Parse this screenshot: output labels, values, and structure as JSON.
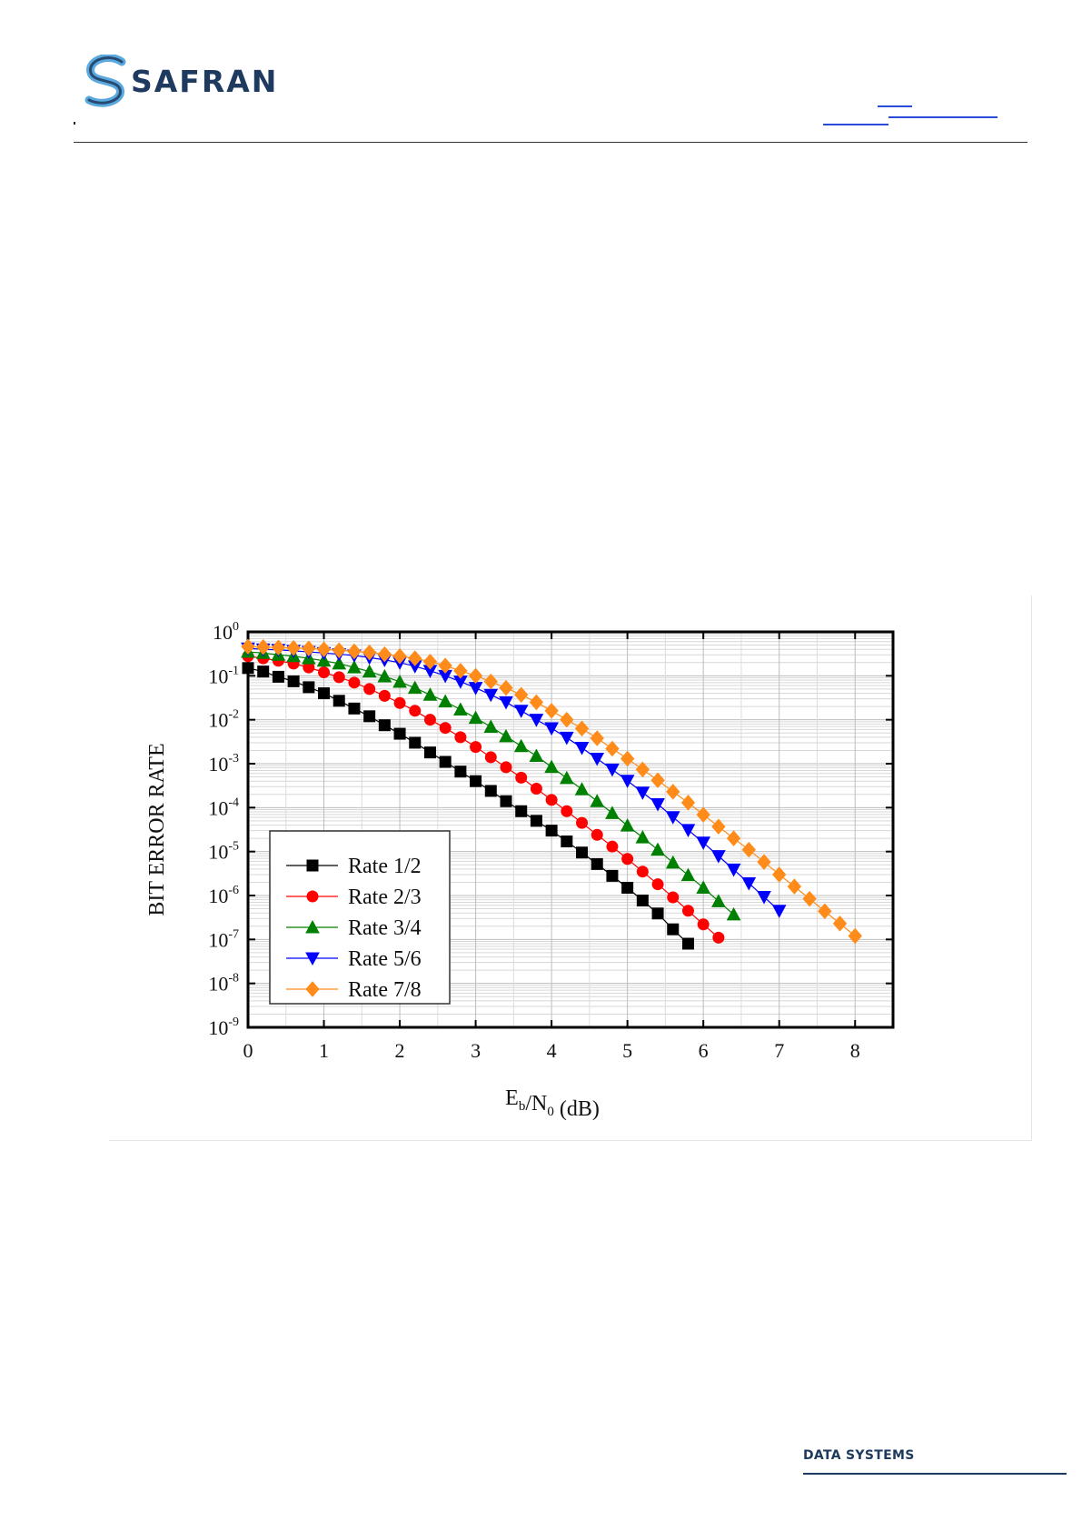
{
  "header": {
    "brand": "SAFRAN",
    "brand_color": "#1e3a5f",
    "logo_icon": "safran-s-swoosh",
    "link_color": "#2a4bd7"
  },
  "footer": {
    "label": "DATA SYSTEMS"
  },
  "chart_data": {
    "type": "line",
    "title": "",
    "xlabel": "E_b/N_0 (dB)",
    "ylabel": "BIT ERROR RATE",
    "xlim": [
      0,
      8.5
    ],
    "ylim": [
      1e-09,
      1
    ],
    "y_scale": "log",
    "x_ticks": [
      0,
      1,
      2,
      3,
      4,
      5,
      6,
      7,
      8
    ],
    "y_ticks": [
      {
        "base": "10",
        "exp": "0",
        "value": 1
      },
      {
        "base": "10",
        "exp": "-1",
        "value": 0.1
      },
      {
        "base": "10",
        "exp": "-2",
        "value": 0.01
      },
      {
        "base": "10",
        "exp": "-3",
        "value": 0.001
      },
      {
        "base": "10",
        "exp": "-4",
        "value": 0.0001
      },
      {
        "base": "10",
        "exp": "-5",
        "value": 1e-05
      },
      {
        "base": "10",
        "exp": "-6",
        "value": 1e-06
      },
      {
        "base": "10",
        "exp": "-7",
        "value": 1e-07
      },
      {
        "base": "10",
        "exp": "-8",
        "value": 1e-08
      },
      {
        "base": "10",
        "exp": "-9",
        "value": 1e-09
      }
    ],
    "grid": true,
    "legend_position": "lower-left",
    "series": [
      {
        "name": "Rate 1/2",
        "color": "#000000",
        "marker": "square",
        "x": [
          0.0,
          0.2,
          0.4,
          0.6,
          0.8,
          1.0,
          1.2,
          1.4,
          1.6,
          1.8,
          2.0,
          2.2,
          2.4,
          2.6,
          2.8,
          3.0,
          3.2,
          3.4,
          3.6,
          3.8,
          4.0,
          4.2,
          4.4,
          4.6,
          4.8,
          5.0,
          5.2,
          5.4,
          5.6,
          5.8
        ],
        "y": [
          0.15,
          0.125,
          0.095,
          0.075,
          0.055,
          0.04,
          0.027,
          0.018,
          0.012,
          0.0075,
          0.0048,
          0.003,
          0.0018,
          0.0011,
          0.00066,
          0.0004,
          0.00024,
          0.00014,
          8.3e-05,
          5e-05,
          3e-05,
          1.7e-05,
          9.5e-06,
          5.2e-06,
          2.8e-06,
          1.5e-06,
          7.7e-07,
          3.9e-07,
          1.7e-07,
          8e-08
        ]
      },
      {
        "name": "Rate 2/3",
        "color": "#ff0000",
        "marker": "circle",
        "x": [
          0.0,
          0.2,
          0.4,
          0.6,
          0.8,
          1.0,
          1.2,
          1.4,
          1.6,
          1.8,
          2.0,
          2.2,
          2.4,
          2.6,
          2.8,
          3.0,
          3.2,
          3.4,
          3.6,
          3.8,
          4.0,
          4.2,
          4.4,
          4.6,
          4.8,
          5.0,
          5.2,
          5.4,
          5.6,
          5.8,
          6.0,
          6.2
        ],
        "y": [
          0.28,
          0.25,
          0.22,
          0.19,
          0.155,
          0.12,
          0.093,
          0.07,
          0.05,
          0.035,
          0.024,
          0.016,
          0.01,
          0.0065,
          0.004,
          0.0024,
          0.0014,
          0.00083,
          0.00048,
          0.00027,
          0.00015,
          8.3e-05,
          4.5e-05,
          2.4e-05,
          1.3e-05,
          6.8e-06,
          3.5e-06,
          1.8e-06,
          9.1e-07,
          4.5e-07,
          2.2e-07,
          1.1e-07
        ]
      },
      {
        "name": "Rate 3/4",
        "color": "#008000",
        "marker": "triangle-up",
        "x": [
          0.0,
          0.2,
          0.4,
          0.6,
          0.8,
          1.0,
          1.2,
          1.4,
          1.6,
          1.8,
          2.0,
          2.2,
          2.4,
          2.6,
          2.8,
          3.0,
          3.2,
          3.4,
          3.6,
          3.8,
          4.0,
          4.2,
          4.4,
          4.6,
          4.8,
          5.0,
          5.2,
          5.4,
          5.6,
          5.8,
          6.0,
          6.2,
          6.4
        ],
        "y": [
          0.35,
          0.33,
          0.3,
          0.28,
          0.25,
          0.22,
          0.19,
          0.155,
          0.125,
          0.097,
          0.073,
          0.053,
          0.037,
          0.026,
          0.017,
          0.011,
          0.0069,
          0.0042,
          0.0025,
          0.0015,
          0.00084,
          0.00047,
          0.00026,
          0.00014,
          7.5e-05,
          3.9e-05,
          2.1e-05,
          1.1e-05,
          5.6e-06,
          2.9e-06,
          1.5e-06,
          7.4e-07,
          3.7e-07
        ]
      },
      {
        "name": "Rate 5/6",
        "color": "#0000ff",
        "marker": "triangle-down",
        "x": [
          0.0,
          0.2,
          0.4,
          0.6,
          0.8,
          1.0,
          1.2,
          1.4,
          1.6,
          1.8,
          2.0,
          2.2,
          2.4,
          2.6,
          2.8,
          3.0,
          3.2,
          3.4,
          3.6,
          3.8,
          4.0,
          4.2,
          4.4,
          4.6,
          4.8,
          5.0,
          5.2,
          5.4,
          5.6,
          5.8,
          6.0,
          6.2,
          6.4,
          6.6,
          6.8,
          7.0
        ],
        "y": [
          0.42,
          0.4,
          0.39,
          0.37,
          0.35,
          0.33,
          0.31,
          0.29,
          0.26,
          0.23,
          0.2,
          0.165,
          0.13,
          0.1,
          0.074,
          0.053,
          0.037,
          0.025,
          0.016,
          0.01,
          0.0064,
          0.0039,
          0.0023,
          0.0013,
          0.00074,
          0.00041,
          0.00022,
          0.00012,
          6.1e-05,
          3.1e-05,
          1.6e-05,
          7.9e-06,
          3.9e-06,
          1.9e-06,
          9.3e-07,
          4.5e-07
        ]
      },
      {
        "name": "Rate 7/8",
        "color": "#ff8c1a",
        "marker": "diamond",
        "x": [
          0.0,
          0.2,
          0.4,
          0.6,
          0.8,
          1.0,
          1.2,
          1.4,
          1.6,
          1.8,
          2.0,
          2.2,
          2.4,
          2.6,
          2.8,
          3.0,
          3.2,
          3.4,
          3.6,
          3.8,
          4.0,
          4.2,
          4.4,
          4.6,
          4.8,
          5.0,
          5.2,
          5.4,
          5.6,
          5.8,
          6.0,
          6.2,
          6.4,
          6.6,
          6.8,
          7.0,
          7.2,
          7.4,
          7.6,
          7.8,
          8.0
        ],
        "y": [
          0.46,
          0.45,
          0.44,
          0.43,
          0.42,
          0.4,
          0.38,
          0.36,
          0.34,
          0.31,
          0.28,
          0.25,
          0.21,
          0.17,
          0.13,
          0.1,
          0.074,
          0.053,
          0.037,
          0.025,
          0.016,
          0.01,
          0.0063,
          0.0038,
          0.0022,
          0.0013,
          0.00074,
          0.00042,
          0.00023,
          0.00013,
          6.9e-05,
          3.7e-05,
          2e-05,
          1.1e-05,
          5.8e-06,
          3e-06,
          1.6e-06,
          8.4e-07,
          4.4e-07,
          2.3e-07,
          1.2e-07
        ]
      }
    ]
  }
}
